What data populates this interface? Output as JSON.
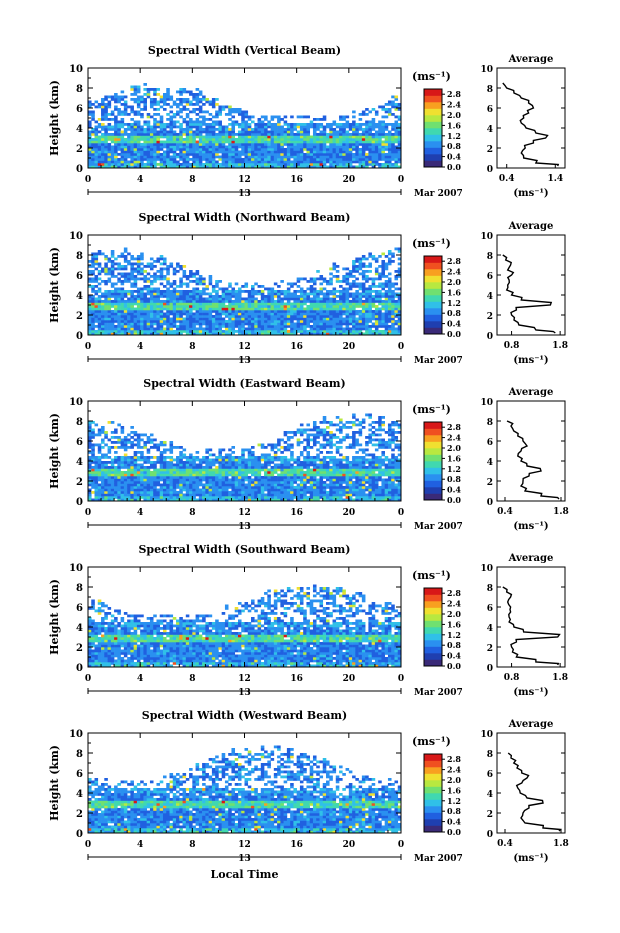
{
  "colors": {
    "colorbar": [
      "#3a2a78",
      "#1f3fb0",
      "#2060e0",
      "#2a90f0",
      "#30c0e8",
      "#40d8b0",
      "#70e070",
      "#b8e840",
      "#f0e030",
      "#f8a020",
      "#f05020",
      "#d81818"
    ],
    "background": "#ffffff",
    "line": "#000000"
  },
  "chart_data": [
    {
      "type": "heatmap",
      "title": "Spectral Width (Vertical Beam)",
      "ylabel": "Height (km)",
      "yticks": [
        "0",
        "2",
        "4",
        "6",
        "8",
        "10"
      ],
      "xticks": [
        "0",
        "4",
        "8",
        "12",
        "16",
        "20",
        "0"
      ],
      "date_center": "13",
      "date_right": "Mar 2007",
      "unit": "(ms⁻¹)",
      "cbar_ticks": [
        "0.0",
        "0.4",
        "0.8",
        "1.2",
        "1.6",
        "2.0",
        "2.4",
        "2.8"
      ],
      "ylim": [
        0,
        10
      ],
      "xlim": [
        0,
        24
      ],
      "clim": [
        0,
        3.0
      ],
      "top_km": 7.5,
      "avg": {
        "title": "Average",
        "xticks": [
          "0.4",
          "1.4"
        ],
        "xlim": [
          0.2,
          1.6
        ],
        "xlabel": "(ms⁻¹)",
        "heights": [
          0.2,
          0.5,
          1.0,
          1.5,
          2.0,
          2.5,
          3.0,
          3.5,
          4.0,
          4.5,
          5.0,
          5.5,
          6.0,
          6.5,
          7.0,
          7.5,
          8.0,
          8.5
        ],
        "values": [
          1.45,
          1.0,
          0.75,
          0.7,
          0.78,
          0.95,
          1.2,
          1.0,
          0.8,
          0.7,
          0.75,
          0.85,
          0.95,
          0.85,
          0.7,
          0.55,
          0.4,
          0.32
        ]
      }
    },
    {
      "type": "heatmap",
      "title": "Spectral Width (Northward Beam)",
      "ylabel": "Height (km)",
      "yticks": [
        "0",
        "2",
        "4",
        "6",
        "8",
        "10"
      ],
      "xticks": [
        "0",
        "4",
        "8",
        "12",
        "16",
        "20",
        "0"
      ],
      "date_center": "13",
      "date_right": "Mar 2007",
      "unit": "(ms⁻¹)",
      "cbar_ticks": [
        "0.0",
        "0.4",
        "0.8",
        "1.2",
        "1.6",
        "2.0",
        "2.4",
        "2.8"
      ],
      "ylim": [
        0,
        10
      ],
      "xlim": [
        0,
        24
      ],
      "clim": [
        0,
        3.0
      ],
      "top_km": 7.8,
      "avg": {
        "title": "Average",
        "xticks": [
          "0.8",
          "1.8"
        ],
        "xlim": [
          0.5,
          1.9
        ],
        "xlabel": "(ms⁻¹)",
        "heights": [
          0.2,
          0.5,
          1.0,
          1.5,
          2.0,
          2.5,
          3.0,
          3.5,
          4.0,
          4.5,
          5.0,
          5.5,
          6.0,
          6.5,
          7.0,
          7.5,
          8.0
        ],
        "values": [
          1.7,
          1.3,
          0.95,
          0.85,
          0.8,
          0.9,
          1.6,
          1.0,
          0.8,
          0.7,
          0.72,
          0.75,
          0.8,
          0.72,
          0.78,
          0.68,
          0.62
        ]
      }
    },
    {
      "type": "heatmap",
      "title": "Spectral Width (Eastward Beam)",
      "ylabel": "Height (km)",
      "yticks": [
        "0",
        "2",
        "4",
        "6",
        "8",
        "10"
      ],
      "xticks": [
        "0",
        "4",
        "8",
        "12",
        "16",
        "20",
        "0"
      ],
      "date_center": "13",
      "date_right": "Mar 2007",
      "unit": "(ms⁻¹)",
      "cbar_ticks": [
        "0.0",
        "0.4",
        "0.8",
        "1.2",
        "1.6",
        "2.0",
        "2.4",
        "2.8"
      ],
      "ylim": [
        0,
        10
      ],
      "xlim": [
        0,
        24
      ],
      "clim": [
        0,
        3.0
      ],
      "top_km": 7.8,
      "avg": {
        "title": "Average",
        "xticks": [
          "0.4",
          "1.8"
        ],
        "xlim": [
          0.2,
          1.9
        ],
        "xlabel": "(ms⁻¹)",
        "heights": [
          0.2,
          0.5,
          1.0,
          1.5,
          2.0,
          2.5,
          3.0,
          3.5,
          4.0,
          4.5,
          5.0,
          5.5,
          6.0,
          6.5,
          7.0,
          7.5,
          8.0
        ],
        "values": [
          1.75,
          1.3,
          0.9,
          0.8,
          0.85,
          1.0,
          1.3,
          0.95,
          0.8,
          0.72,
          0.8,
          0.95,
          0.85,
          0.72,
          0.62,
          0.55,
          0.45
        ]
      }
    },
    {
      "type": "heatmap",
      "title": "Spectral Width (Southward Beam)",
      "ylabel": "Height (km)",
      "yticks": [
        "0",
        "2",
        "4",
        "6",
        "8",
        "10"
      ],
      "xticks": [
        "0",
        "4",
        "8",
        "12",
        "16",
        "20",
        "0"
      ],
      "date_center": "13",
      "date_right": "Mar 2007",
      "unit": "(ms⁻¹)",
      "cbar_ticks": [
        "0.0",
        "0.4",
        "0.8",
        "1.2",
        "1.6",
        "2.0",
        "2.4",
        "2.8"
      ],
      "ylim": [
        0,
        10
      ],
      "xlim": [
        0,
        24
      ],
      "clim": [
        0,
        3.0
      ],
      "top_km": 7.5,
      "avg": {
        "title": "Average",
        "xticks": [
          "0.8",
          "1.8"
        ],
        "xlim": [
          0.5,
          1.9
        ],
        "xlabel": "(ms⁻¹)",
        "heights": [
          0.2,
          0.5,
          1.0,
          1.5,
          2.0,
          2.5,
          3.0,
          3.5,
          4.0,
          4.5,
          5.0,
          5.5,
          6.0,
          6.5,
          7.0,
          7.5,
          8.0
        ],
        "values": [
          1.75,
          1.3,
          0.9,
          0.82,
          0.8,
          0.9,
          1.75,
          1.05,
          0.85,
          0.75,
          0.75,
          0.78,
          0.78,
          0.72,
          0.78,
          0.7,
          0.62
        ]
      }
    },
    {
      "type": "heatmap",
      "title": "Spectral Width (Westward Beam)",
      "ylabel": "Height (km)",
      "yticks": [
        "0",
        "2",
        "4",
        "6",
        "8",
        "10"
      ],
      "xticks": [
        "0",
        "4",
        "8",
        "12",
        "16",
        "20",
        "0"
      ],
      "date_center": "13",
      "date_right": "Mar 2007",
      "unit": "(ms⁻¹)",
      "cbar_ticks": [
        "0.0",
        "0.4",
        "0.8",
        "1.2",
        "1.6",
        "2.0",
        "2.4",
        "2.8"
      ],
      "ylim": [
        0,
        10
      ],
      "xlim": [
        0,
        24
      ],
      "clim": [
        0,
        3.0
      ],
      "top_km": 7.8,
      "avg": {
        "title": "Average",
        "xticks": [
          "0.4",
          "1.8"
        ],
        "xlim": [
          0.2,
          1.9
        ],
        "xlabel": "(ms⁻¹)",
        "heights": [
          0.2,
          0.5,
          1.0,
          1.5,
          2.0,
          2.5,
          3.0,
          3.5,
          4.0,
          4.5,
          5.0,
          5.5,
          6.0,
          6.5,
          7.0,
          7.5,
          8.0
        ],
        "values": [
          1.75,
          1.35,
          0.9,
          0.8,
          0.85,
          1.0,
          1.35,
          0.95,
          0.78,
          0.72,
          0.82,
          0.95,
          0.82,
          0.7,
          0.62,
          0.55,
          0.48
        ]
      }
    }
  ],
  "xlabel": "Local Time"
}
